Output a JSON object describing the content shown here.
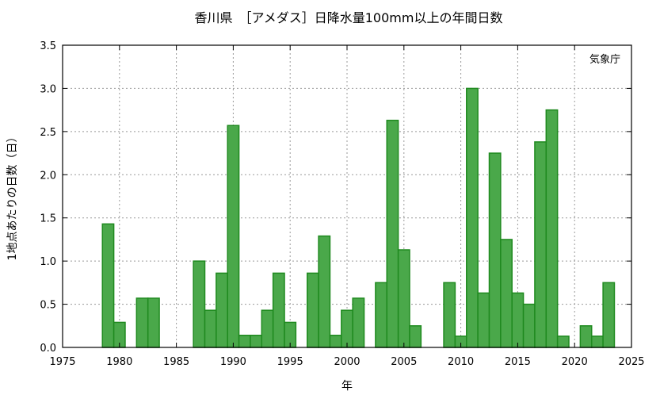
{
  "chart_data": {
    "type": "bar",
    "title": "香川県　［アメダス］日降水量100mm以上の年間日数",
    "source": "気象庁",
    "xlabel": "年",
    "ylabel": "1地点あたりの日数（日）",
    "xlim": [
      1975,
      2025
    ],
    "ylim": [
      0.0,
      3.5
    ],
    "xticks": [
      "1975",
      "1980",
      "1985",
      "1990",
      "1995",
      "2000",
      "2005",
      "2010",
      "2015",
      "2020",
      "2025"
    ],
    "yticks": [
      "0.0",
      "0.5",
      "1.0",
      "1.5",
      "2.0",
      "2.5",
      "3.0",
      "3.5"
    ],
    "grid": true,
    "bar_color": "#4aa84a",
    "bar_edge_color": "#1f8a1f",
    "x": [
      1979,
      1980,
      1982,
      1983,
      1987,
      1988,
      1989,
      1990,
      1991,
      1992,
      1993,
      1994,
      1995,
      1997,
      1998,
      1999,
      2000,
      2001,
      2003,
      2004,
      2005,
      2006,
      2009,
      2010,
      2011,
      2012,
      2013,
      2014,
      2015,
      2016,
      2017,
      2018,
      2019,
      2021,
      2022,
      2023
    ],
    "values": [
      1.43,
      0.29,
      0.57,
      0.57,
      1.0,
      0.43,
      0.86,
      2.57,
      0.14,
      0.14,
      0.43,
      0.86,
      0.29,
      0.86,
      1.29,
      0.14,
      0.43,
      0.57,
      0.75,
      2.63,
      1.13,
      0.25,
      0.75,
      0.13,
      3.0,
      0.63,
      2.25,
      1.25,
      0.63,
      0.5,
      2.38,
      2.75,
      0.13,
      0.25,
      0.13,
      0.75
    ]
  }
}
